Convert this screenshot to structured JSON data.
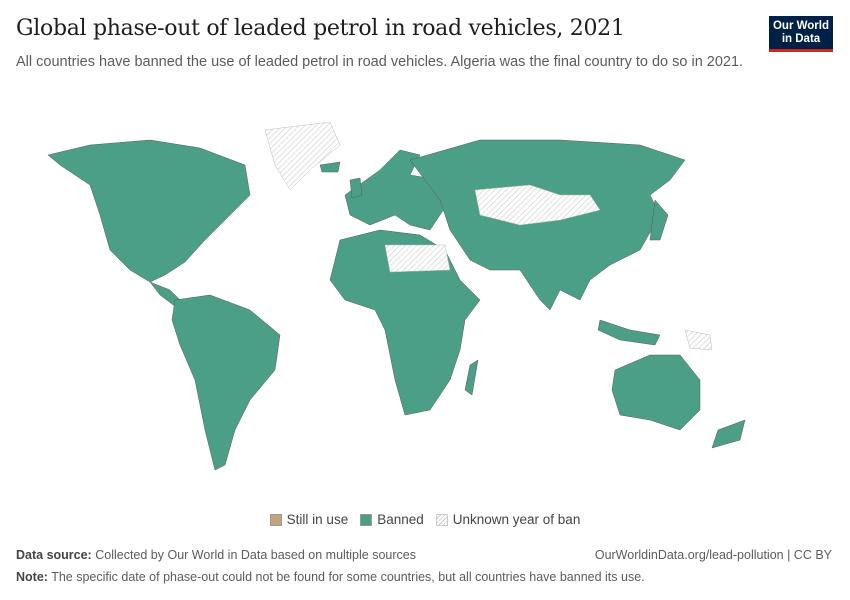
{
  "header": {
    "title": "Global phase-out of leaded petrol in road vehicles, 2021",
    "subtitle": "All countries have banned the use of leaded petrol in road vehicles. Algeria was the final country to do so in 2021.",
    "logo_text": "Our World in Data"
  },
  "map": {
    "year": 2021,
    "colors": {
      "still_in_use": "#c4a47c",
      "banned": "#4c9f87",
      "unknown": "#ffffff",
      "border": "#5a5a5a"
    },
    "regions": [
      {
        "name": "North America",
        "status": "banned"
      },
      {
        "name": "Greenland",
        "status": "unknown"
      },
      {
        "name": "Central America",
        "status": "banned"
      },
      {
        "name": "South America",
        "status": "banned"
      },
      {
        "name": "Europe",
        "status": "banned"
      },
      {
        "name": "Russia and Asia",
        "status": "banned"
      },
      {
        "name": "Central Asia",
        "status": "unknown"
      },
      {
        "name": "Africa",
        "status": "banned"
      },
      {
        "name": "Libya",
        "status": "unknown"
      },
      {
        "name": "Australia",
        "status": "banned"
      },
      {
        "name": "New Zealand",
        "status": "banned"
      },
      {
        "name": "Madagascar",
        "status": "banned"
      },
      {
        "name": "Japan",
        "status": "banned"
      },
      {
        "name": "United Kingdom",
        "status": "banned"
      },
      {
        "name": "Iceland",
        "status": "banned"
      },
      {
        "name": "Indonesia",
        "status": "banned"
      },
      {
        "name": "Papua New Guinea",
        "status": "unknown"
      }
    ]
  },
  "legend": {
    "items": [
      {
        "label": "Still in use",
        "color": "#c4a47c"
      },
      {
        "label": "Banned",
        "color": "#4c9f87"
      },
      {
        "label": "Unknown year of ban",
        "color": "hatched"
      }
    ]
  },
  "footer": {
    "source_label": "Data source:",
    "source_text": "Collected by Our World in Data based on multiple sources",
    "url": "OurWorldinData.org/lead-pollution | CC BY",
    "note_label": "Note:",
    "note_text": "The specific date of phase-out could not be found for some countries, but all countries have banned its use."
  }
}
